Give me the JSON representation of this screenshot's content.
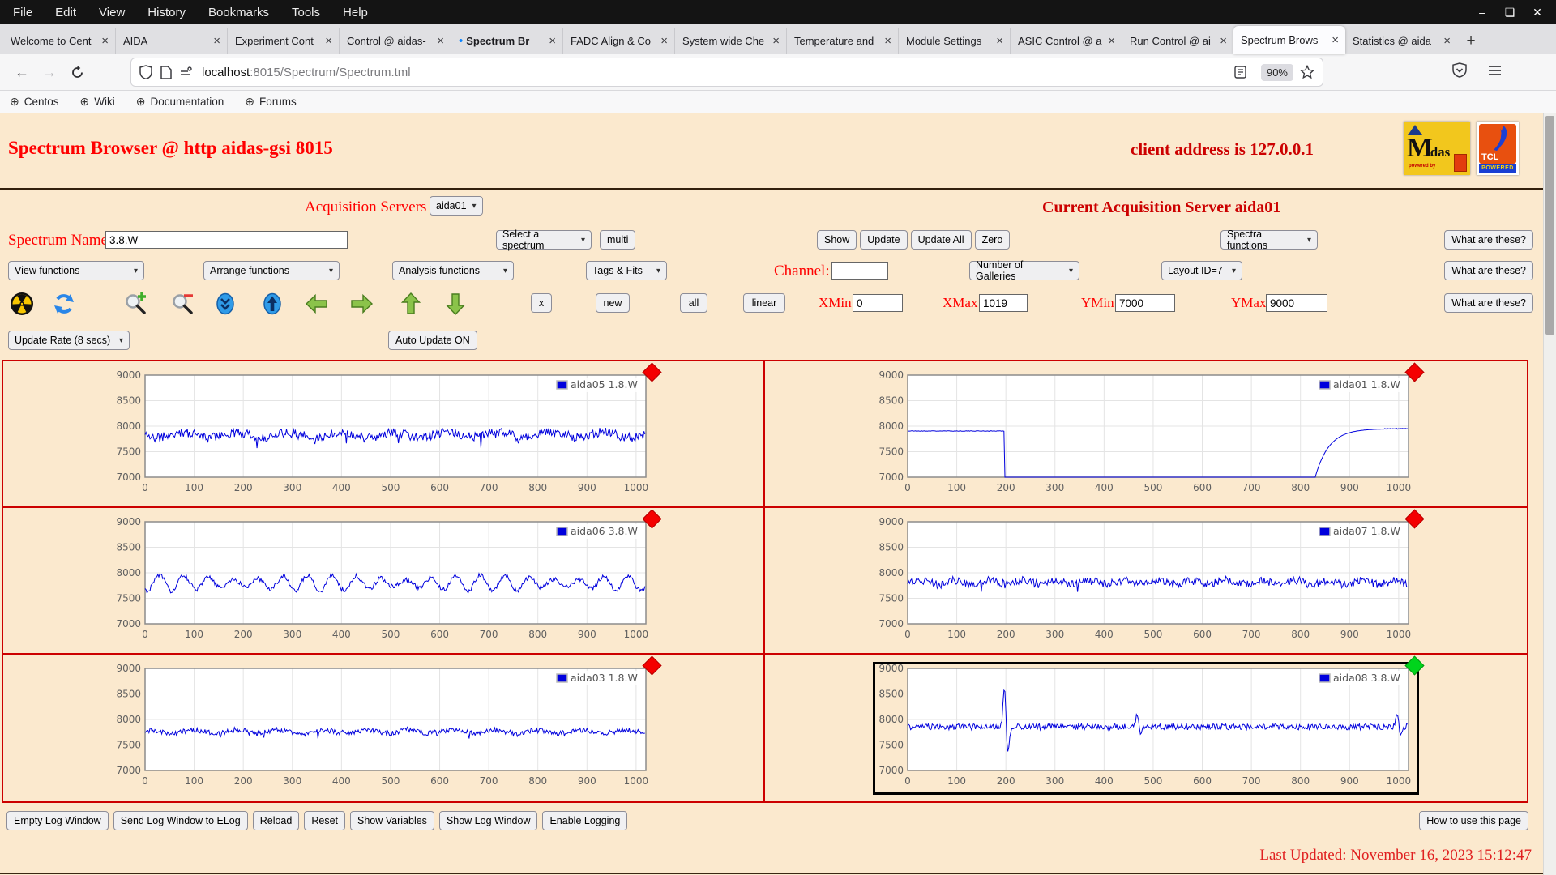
{
  "browser": {
    "menu": [
      "File",
      "Edit",
      "View",
      "History",
      "Bookmarks",
      "Tools",
      "Help"
    ],
    "window_controls": [
      "minimize",
      "maximize",
      "close"
    ],
    "tabs": [
      {
        "label": "Welcome to Cent"
      },
      {
        "label": "AIDA"
      },
      {
        "label": "Experiment Cont"
      },
      {
        "label": "Control @ aidas-"
      },
      {
        "label": "Spectrum Br",
        "pending": true
      },
      {
        "label": "FADC Align & Co"
      },
      {
        "label": "System wide Che"
      },
      {
        "label": "Temperature and"
      },
      {
        "label": "Module Settings"
      },
      {
        "label": "ASIC Control @ a"
      },
      {
        "label": "Run Control @ ai"
      },
      {
        "label": "Spectrum Brows",
        "active": true
      },
      {
        "label": "Statistics @ aida"
      }
    ],
    "new_tab_label": "+",
    "tab_close_glyph": "×",
    "nav": {
      "url_host": "localhost",
      "url_rest": ":8015/Spectrum/Spectrum.tml",
      "zoom_badge": "90%"
    },
    "bookmarks": [
      "Centos",
      "Wiki",
      "Documentation",
      "Forums"
    ]
  },
  "page": {
    "title": "Spectrum Browser @ http aidas-gsi 8015",
    "client_address": "client address is 127.0.0.1",
    "acquisition_servers_label": "Acquisition Servers",
    "acquisition_server_selected": "aida01",
    "current_server_text": "Current Acquisition Server aida01",
    "spectrum_name_label": "Spectrum Name:",
    "spectrum_name_value": "3.8.W",
    "select_spectrum_label": "Select a spectrum",
    "multi_button": "multi",
    "action_buttons": [
      "Show",
      "Update",
      "Update All",
      "Zero"
    ],
    "spectra_functions_label": "Spectra functions",
    "what_are_these": "What are these?",
    "function_selects": [
      "View functions",
      "Arrange functions",
      "Analysis functions",
      "Tags & Fits"
    ],
    "channel_label": "Channel:",
    "channel_value": "",
    "galleries_label": "Number of Galleries",
    "layout_label": "Layout ID=7",
    "small_buttons": [
      "x",
      "new",
      "all",
      "linear"
    ],
    "axis_fields": [
      {
        "label": "XMin",
        "value": "0"
      },
      {
        "label": "XMax",
        "value": "1019"
      },
      {
        "label": "YMin",
        "value": "7000"
      },
      {
        "label": "YMax",
        "value": "9000"
      }
    ],
    "update_rate_label": "Update Rate (8 secs)",
    "auto_update_label": "Auto Update ON",
    "toolbar_icons": [
      "radiation",
      "refresh",
      "zoom-in",
      "zoom-out",
      "collapse-down",
      "expand-up",
      "arrow-left",
      "arrow-right",
      "arrow-up",
      "arrow-down"
    ],
    "log_buttons": [
      "Empty Log Window",
      "Send Log Window to ELog",
      "Reload",
      "Reset",
      "Show Variables",
      "Show Log Window",
      "Enable Logging"
    ],
    "help_button": "How to use this page",
    "last_updated": "Last Updated: November 16, 2023 15:12:47",
    "logos": {
      "midas_m": "M",
      "midas_idas": "idas",
      "midas_sub": "powered by",
      "tcl": "TCL",
      "tcl_sub": "POWERED"
    }
  },
  "colors": {
    "page_bg": "#fbe9ce",
    "accent_red": "#ff0000",
    "dark_red": "#cc0000",
    "series_blue": "#0000dd",
    "grid_border_red": "#cc0000",
    "marker_red": "#f40000",
    "marker_green": "#00d41c"
  },
  "chart_data": {
    "type": "line",
    "axes": {
      "x_range": [
        0,
        1020
      ],
      "y_range": [
        7000,
        9000
      ],
      "x_ticks": [
        0,
        100,
        200,
        300,
        400,
        500,
        600,
        700,
        800,
        900,
        1000
      ],
      "y_ticks": [
        7000,
        7500,
        8000,
        8500,
        9000
      ],
      "grid": true,
      "legend_position": "top-right"
    },
    "charts": [
      {
        "name": "aida05 1.8.W",
        "marker": "red",
        "profile": {
          "kind": "noisy",
          "baseline": 7830,
          "noise": 170,
          "wave_amp": 70,
          "wave_len": 17,
          "dip_prob": 0.012,
          "dip_depth": 280,
          "seed": 11
        }
      },
      {
        "name": "aida01 1.8.W",
        "marker": "red",
        "profile": {
          "kind": "dropout",
          "level": 7905,
          "drop_x": 197,
          "rise_x": 830,
          "tau": 28,
          "end_level": 7950,
          "seed": 21
        }
      },
      {
        "name": "aida06 3.8.W",
        "marker": "red",
        "profile": {
          "kind": "packets",
          "baseline": 7800,
          "noise": 90,
          "amp": 160,
          "carrier": 8.0,
          "env_len": 105,
          "seed": 31
        }
      },
      {
        "name": "aida07 1.8.W",
        "marker": "red",
        "profile": {
          "kind": "noisy",
          "baseline": 7815,
          "noise": 150,
          "wave_amp": 55,
          "wave_len": 11,
          "dip_prob": 0.008,
          "dip_depth": 200,
          "seed": 41
        }
      },
      {
        "name": "aida03 1.8.W",
        "marker": "red",
        "profile": {
          "kind": "noisy",
          "baseline": 7760,
          "noise": 100,
          "wave_amp": 45,
          "wave_len": 14,
          "dip_prob": 0.005,
          "dip_depth": 160,
          "seed": 51
        }
      },
      {
        "name": "aida08 3.8.W",
        "marker": "green",
        "selected": true,
        "profile": {
          "kind": "spiky",
          "baseline": 7855,
          "noise": 120,
          "seed": 61,
          "spikes": [
            {
              "x": 200,
              "up": 800,
              "down": 510
            },
            {
              "x": 470,
              "up": 250,
              "down": 160
            },
            {
              "x": 1000,
              "up": 220,
              "down": 140
            }
          ]
        }
      }
    ]
  }
}
